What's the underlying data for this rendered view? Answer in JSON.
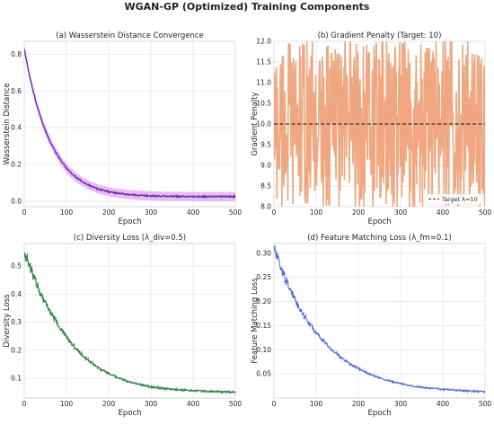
{
  "figure": {
    "title": "WGAN-GP (Optimized) Training Components"
  },
  "chart_data": [
    {
      "type": "line",
      "title": "(a) Wasserstein Distance Convergence",
      "xlabel": "Epoch",
      "ylabel": "Wasserstein Distance",
      "xlim": [
        0,
        500
      ],
      "ylim": [
        -0.03,
        0.87
      ],
      "xticks": [
        0,
        100,
        200,
        300,
        400,
        500
      ],
      "yticks": [
        0.0,
        0.2,
        0.4,
        0.6,
        0.8
      ],
      "grid": true,
      "band": true,
      "series": [
        {
          "color": "#6a2bb8",
          "band_color": "#e6a6ea",
          "x": [
            0,
            10,
            20,
            30,
            40,
            50,
            60,
            70,
            80,
            90,
            100,
            110,
            120,
            130,
            140,
            150,
            160,
            170,
            180,
            190,
            200,
            220,
            240,
            260,
            280,
            300,
            330,
            360,
            400,
            450,
            500
          ],
          "y": [
            0.83,
            0.71,
            0.61,
            0.52,
            0.45,
            0.385,
            0.33,
            0.285,
            0.245,
            0.21,
            0.18,
            0.156,
            0.135,
            0.118,
            0.103,
            0.09,
            0.08,
            0.071,
            0.063,
            0.057,
            0.052,
            0.044,
            0.038,
            0.034,
            0.031,
            0.029,
            0.027,
            0.026,
            0.025,
            0.025,
            0.025
          ],
          "band_halfwidth": 0.025
        }
      ]
    },
    {
      "type": "line",
      "title": "(b) Gradient Penalty (Target: 10)",
      "xlabel": "Epoch",
      "ylabel": "Gradient Penalty",
      "xlim": [
        0,
        500
      ],
      "ylim": [
        8.0,
        12.0
      ],
      "xticks": [
        0,
        100,
        200,
        300,
        400,
        500
      ],
      "yticks": [
        8.0,
        8.5,
        9.0,
        9.5,
        10.0,
        10.5,
        11.0,
        11.5,
        12.0
      ],
      "grid": true,
      "legend": {
        "position": "bottom-right",
        "entries": [
          "Target λ=10"
        ]
      },
      "reference_line": {
        "y": 10.0,
        "color": "#333333",
        "style": "dashed"
      },
      "noise": {
        "mean": 10.0,
        "range": [
          8.0,
          12.0
        ]
      },
      "series": [
        {
          "color": "#f4a582",
          "band_color": "#d4a96e"
        }
      ]
    },
    {
      "type": "line",
      "title": "(c) Diversity Loss (λ_div=0.5)",
      "xlabel": "Epoch",
      "ylabel": "Diversity Loss",
      "xlim": [
        0,
        500
      ],
      "ylim": [
        0.03,
        0.58
      ],
      "xticks": [
        0,
        100,
        200,
        300,
        400,
        500
      ],
      "yticks": [
        0.1,
        0.2,
        0.3,
        0.4,
        0.5
      ],
      "grid": true,
      "series": [
        {
          "color": "#2a8a4a",
          "noise_color": "#3a4a3a",
          "x": [
            0,
            10,
            20,
            30,
            40,
            50,
            60,
            70,
            80,
            90,
            100,
            120,
            140,
            160,
            180,
            200,
            220,
            240,
            260,
            280,
            300,
            330,
            360,
            400,
            450,
            500
          ],
          "y": [
            0.55,
            0.51,
            0.47,
            0.435,
            0.4,
            0.37,
            0.342,
            0.315,
            0.29,
            0.268,
            0.247,
            0.21,
            0.18,
            0.155,
            0.134,
            0.117,
            0.103,
            0.092,
            0.083,
            0.076,
            0.07,
            0.064,
            0.06,
            0.056,
            0.053,
            0.051
          ],
          "noise_amplitude": 0.02
        }
      ]
    },
    {
      "type": "line",
      "title": "(d) Feature Matching Loss (λ_fm=0.1)",
      "xlabel": "Epoch",
      "ylabel": "Feature Matching Loss",
      "xlim": [
        0,
        500
      ],
      "ylim": [
        0.0,
        0.32
      ],
      "xticks": [
        0,
        100,
        200,
        300,
        400,
        500
      ],
      "yticks": [
        0.05,
        0.1,
        0.15,
        0.2,
        0.25,
        0.3
      ],
      "grid": true,
      "series": [
        {
          "color": "#4a6ad8",
          "x": [
            0,
            10,
            20,
            30,
            40,
            50,
            60,
            70,
            80,
            90,
            100,
            120,
            140,
            160,
            180,
            200,
            220,
            240,
            260,
            280,
            300,
            330,
            360,
            400,
            450,
            500
          ],
          "y": [
            0.31,
            0.285,
            0.262,
            0.241,
            0.222,
            0.204,
            0.188,
            0.173,
            0.159,
            0.147,
            0.135,
            0.115,
            0.098,
            0.083,
            0.071,
            0.061,
            0.052,
            0.045,
            0.039,
            0.034,
            0.03,
            0.025,
            0.021,
            0.018,
            0.015,
            0.013
          ],
          "noise_amplitude": 0.012
        }
      ]
    }
  ]
}
